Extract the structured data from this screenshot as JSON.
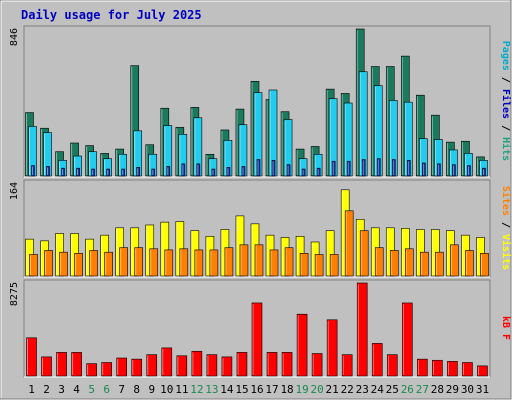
{
  "chart_data": {
    "type": "bar",
    "title": "Daily usage for July 2025",
    "categories": [
      "1",
      "2",
      "3",
      "4",
      "5",
      "6",
      "7",
      "8",
      "9",
      "10",
      "11",
      "12",
      "13",
      "14",
      "15",
      "16",
      "17",
      "18",
      "19",
      "20",
      "21",
      "22",
      "23",
      "24",
      "25",
      "26",
      "27",
      "28",
      "29",
      "30",
      "31"
    ],
    "weekend_days": [
      "5",
      "6",
      "12",
      "13",
      "19",
      "20",
      "26",
      "27"
    ],
    "panels": [
      {
        "id": "top",
        "ylabel_max": "846",
        "ymax": 846,
        "legend": [
          "Pages",
          "Files",
          "Hits"
        ],
        "series": [
          {
            "name": "Hits",
            "color": "#1a7a5e",
            "values": [
              365,
              275,
              140,
              190,
              175,
              130,
              155,
              635,
              180,
              390,
              280,
              395,
              125,
              265,
              385,
              545,
              440,
              370,
              155,
              170,
              500,
              475,
              846,
              630,
              630,
              690,
              465,
              350,
              195,
              200,
              110
            ]
          },
          {
            "name": "Files",
            "color": "#22ccee",
            "values": [
              285,
              250,
              90,
              115,
              140,
              100,
              125,
              260,
              125,
              290,
              240,
              335,
              100,
              205,
              295,
              480,
              495,
              325,
              100,
              125,
              445,
              420,
              600,
              520,
              435,
              425,
              215,
              210,
              150,
              130,
              90
            ]
          },
          {
            "name": "Pages",
            "color": "#1c2fb0",
            "values": [
              60,
              55,
              45,
              45,
              40,
              40,
              40,
              50,
              40,
              55,
              70,
              70,
              40,
              50,
              55,
              95,
              90,
              65,
              40,
              45,
              85,
              85,
              95,
              100,
              95,
              90,
              75,
              70,
              65,
              60,
              45
            ]
          }
        ]
      },
      {
        "id": "middle",
        "ylabel_max": "164",
        "ymax": 164,
        "legend": [
          "Sites",
          "Visits"
        ],
        "series": [
          {
            "name": "Visits",
            "color": "#ffff00",
            "values": [
              65,
              62,
              75,
              75,
              65,
              72,
              85,
              85,
              90,
              95,
              96,
              80,
              70,
              82,
              106,
              92,
              72,
              68,
              70,
              60,
              80,
              152,
              100,
              85,
              85,
              84,
              82,
              82,
              80,
              72,
              68
            ]
          },
          {
            "name": "Sites",
            "color": "#ff8000",
            "values": [
              38,
              45,
              42,
              40,
              45,
              42,
              50,
              50,
              48,
              46,
              48,
              46,
              46,
              50,
              55,
              55,
              46,
              50,
              40,
              38,
              38,
              115,
              80,
              50,
              45,
              48,
              42,
              42,
              55,
              45,
              40
            ]
          }
        ]
      },
      {
        "id": "bottom",
        "ylabel_max": "8275",
        "ymax": 8275,
        "legend": [
          "kB F"
        ],
        "series": [
          {
            "name": "kB F",
            "color": "#ff0000",
            "values": [
              3400,
              1700,
              2100,
              2100,
              1100,
              1200,
              1600,
              1500,
              1900,
              2500,
              1800,
              2200,
              1900,
              1700,
              2100,
              6500,
              2100,
              2100,
              5500,
              2000,
              5000,
              1900,
              8275,
              2900,
              1900,
              6500,
              1500,
              1400,
              1300,
              1200,
              900
            ]
          }
        ]
      }
    ]
  }
}
